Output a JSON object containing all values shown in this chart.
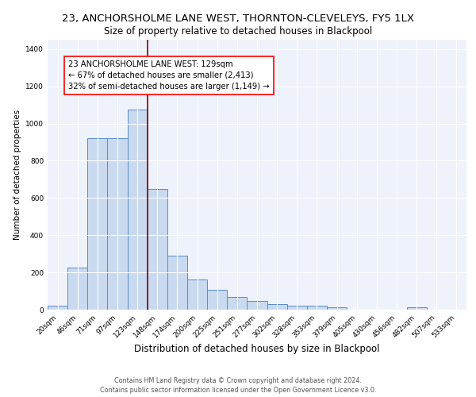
{
  "title": "23, ANCHORSHOLME LANE WEST, THORNTON-CLEVELEYS, FY5 1LX",
  "subtitle": "Size of property relative to detached houses in Blackpool",
  "xlabel": "Distribution of detached houses by size in Blackpool",
  "ylabel": "Number of detached properties",
  "bar_labels": [
    "20sqm",
    "46sqm",
    "71sqm",
    "97sqm",
    "123sqm",
    "148sqm",
    "174sqm",
    "200sqm",
    "225sqm",
    "251sqm",
    "277sqm",
    "302sqm",
    "328sqm",
    "353sqm",
    "379sqm",
    "405sqm",
    "430sqm",
    "456sqm",
    "482sqm",
    "507sqm",
    "533sqm"
  ],
  "bar_heights": [
    20,
    225,
    920,
    920,
    1075,
    650,
    290,
    160,
    105,
    68,
    45,
    28,
    20,
    20,
    12,
    0,
    0,
    0,
    12,
    0,
    0
  ],
  "bar_color": "#c9d9ef",
  "bar_edge_color": "#5b8cc8",
  "vline_x": 4.5,
  "vline_color": "#8b0000",
  "annotation_text": "23 ANCHORSHOLME LANE WEST: 129sqm\n← 67% of detached houses are smaller (2,413)\n32% of semi-detached houses are larger (1,149) →",
  "ylim": [
    0,
    1450
  ],
  "yticks": [
    0,
    200,
    400,
    600,
    800,
    1000,
    1200,
    1400
  ],
  "bg_color": "#eef2fa",
  "footer_line1": "Contains HM Land Registry data © Crown copyright and database right 2024.",
  "footer_line2": "Contains public sector information licensed under the Open Government Licence v3.0.",
  "title_fontsize": 9.5,
  "subtitle_fontsize": 8.5,
  "xlabel_fontsize": 8.5,
  "ylabel_fontsize": 7.5,
  "tick_fontsize": 6.5,
  "annotation_fontsize": 7.2,
  "footer_fontsize": 5.8
}
